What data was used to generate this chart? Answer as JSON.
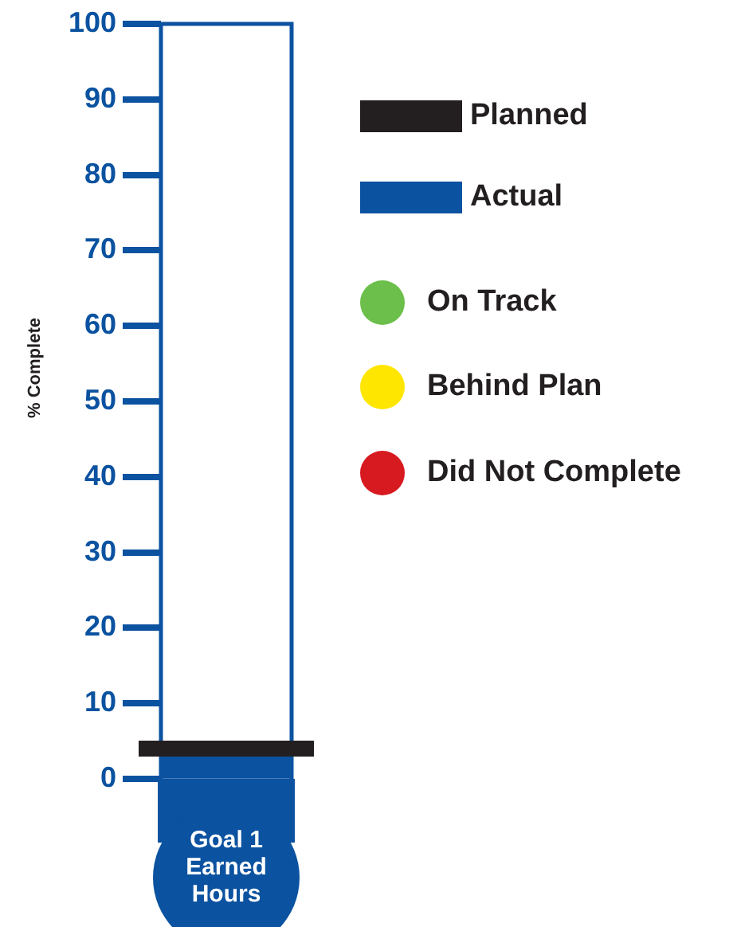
{
  "chart_data": {
    "type": "bar",
    "ylabel": "% Complete",
    "categories": [
      "Goal 1 Earned Hours"
    ],
    "ylim": [
      0,
      100
    ],
    "yticks": [
      0,
      10,
      20,
      30,
      40,
      50,
      60,
      70,
      80,
      90,
      100
    ],
    "grid": false,
    "legend": "right",
    "ref_lines": [
      {
        "axis": "y",
        "value": 4,
        "label": "Planned",
        "color": "#231f20"
      }
    ],
    "series": [
      {
        "name": "Actual",
        "color": "#0b52a0",
        "values": [
          3
        ]
      },
      {
        "name": "On Track",
        "type": "scatter",
        "marker": "circle",
        "color": "#6cbf4a",
        "values": [
          null
        ]
      },
      {
        "name": "Behind Plan",
        "type": "scatter",
        "marker": "circle",
        "color": "#ffe600",
        "values": [
          null
        ]
      },
      {
        "name": "Did Not Complete",
        "type": "scatter",
        "marker": "circle",
        "color": "#d71920",
        "values": [
          null
        ]
      }
    ]
  }
}
